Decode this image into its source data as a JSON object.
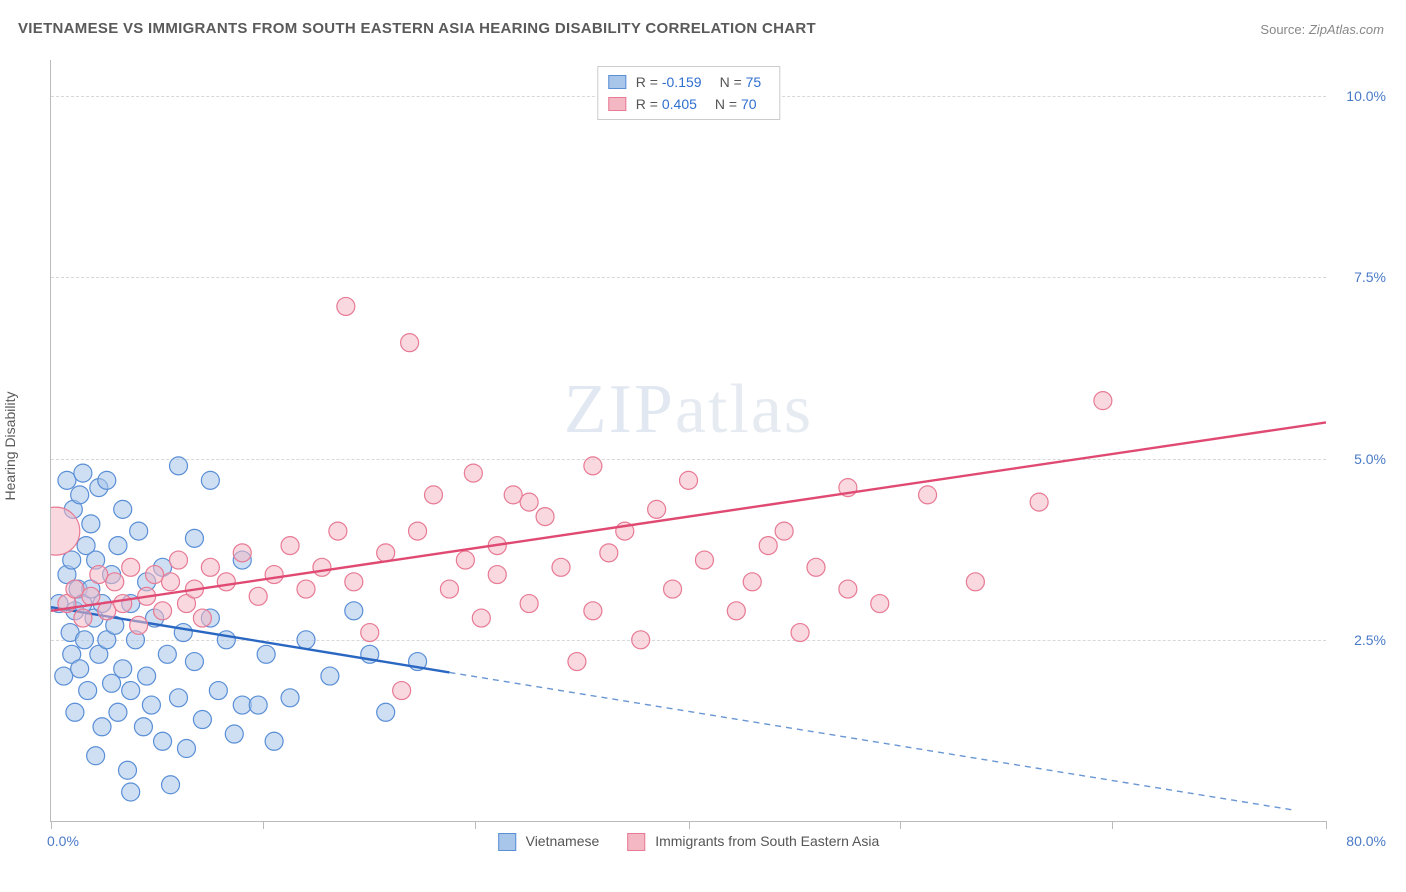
{
  "title": "VIETNAMESE VS IMMIGRANTS FROM SOUTH EASTERN ASIA HEARING DISABILITY CORRELATION CHART",
  "source_label": "Source:",
  "source_name": "ZipAtlas.com",
  "y_axis_label": "Hearing Disability",
  "watermark": {
    "bold": "ZIP",
    "light": "atlas"
  },
  "chart": {
    "type": "scatter",
    "background_color": "#ffffff",
    "grid_color": "#d8d8d8",
    "axis_color": "#bbbbbb",
    "tick_label_color": "#4a7ac7",
    "xlim": [
      0,
      80
    ],
    "ylim": [
      0,
      10.5
    ],
    "x_ticks": [
      0,
      13.3,
      26.6,
      40,
      53.3,
      66.6,
      80
    ],
    "x_tick_labels": {
      "first": "0.0%",
      "last": "80.0%"
    },
    "y_grid": [
      2.5,
      5.0,
      7.5,
      10.0
    ],
    "y_tick_labels": [
      "2.5%",
      "5.0%",
      "7.5%",
      "10.0%"
    ],
    "series": [
      {
        "name": "Vietnamese",
        "label": "Vietnamese",
        "fill_color": "#a8c5ea",
        "stroke_color": "#5a8fd6",
        "fill_opacity": 0.55,
        "marker_radius": 9,
        "R": "-0.159",
        "N": "75",
        "trend": {
          "solid": {
            "x1": 0,
            "y1": 2.95,
            "x2": 25,
            "y2": 2.05
          },
          "dashed": {
            "x1": 25,
            "y1": 2.05,
            "x2": 78,
            "y2": 0.15
          },
          "solid_color": "#2a67c2",
          "solid_width": 2.4,
          "dash_color": "#6a97d3",
          "dash_width": 1.4
        },
        "points": [
          [
            0.5,
            3.0
          ],
          [
            0.8,
            2.0
          ],
          [
            1.0,
            3.4
          ],
          [
            1.0,
            4.7
          ],
          [
            1.2,
            2.6
          ],
          [
            1.3,
            2.3
          ],
          [
            1.3,
            3.6
          ],
          [
            1.4,
            4.3
          ],
          [
            1.5,
            1.5
          ],
          [
            1.5,
            2.9
          ],
          [
            1.7,
            3.2
          ],
          [
            1.8,
            2.1
          ],
          [
            1.8,
            4.5
          ],
          [
            2.0,
            3.0
          ],
          [
            2.0,
            4.8
          ],
          [
            2.1,
            2.5
          ],
          [
            2.2,
            3.8
          ],
          [
            2.3,
            1.8
          ],
          [
            2.5,
            3.2
          ],
          [
            2.5,
            4.1
          ],
          [
            2.7,
            2.8
          ],
          [
            2.8,
            0.9
          ],
          [
            2.8,
            3.6
          ],
          [
            3.0,
            2.3
          ],
          [
            3.0,
            4.6
          ],
          [
            3.2,
            1.3
          ],
          [
            3.2,
            3.0
          ],
          [
            3.5,
            2.5
          ],
          [
            3.5,
            4.7
          ],
          [
            3.8,
            1.9
          ],
          [
            3.8,
            3.4
          ],
          [
            4.0,
            2.7
          ],
          [
            4.2,
            1.5
          ],
          [
            4.2,
            3.8
          ],
          [
            4.5,
            2.1
          ],
          [
            4.5,
            4.3
          ],
          [
            4.8,
            0.7
          ],
          [
            5.0,
            3.0
          ],
          [
            5.0,
            1.8
          ],
          [
            5.3,
            2.5
          ],
          [
            5.5,
            4.0
          ],
          [
            5.8,
            1.3
          ],
          [
            6.0,
            3.3
          ],
          [
            6.0,
            2.0
          ],
          [
            6.3,
            1.6
          ],
          [
            6.5,
            2.8
          ],
          [
            7.0,
            1.1
          ],
          [
            7.0,
            3.5
          ],
          [
            7.3,
            2.3
          ],
          [
            7.5,
            0.5
          ],
          [
            8.0,
            4.9
          ],
          [
            8.0,
            1.7
          ],
          [
            8.3,
            2.6
          ],
          [
            8.5,
            1.0
          ],
          [
            9.0,
            2.2
          ],
          [
            9.0,
            3.9
          ],
          [
            9.5,
            1.4
          ],
          [
            10.0,
            2.8
          ],
          [
            10.0,
            4.7
          ],
          [
            10.5,
            1.8
          ],
          [
            11.0,
            2.5
          ],
          [
            11.5,
            1.2
          ],
          [
            12.0,
            1.6
          ],
          [
            12.0,
            3.6
          ],
          [
            13.0,
            1.6
          ],
          [
            13.5,
            2.3
          ],
          [
            14.0,
            1.1
          ],
          [
            15.0,
            1.7
          ],
          [
            16.0,
            2.5
          ],
          [
            17.5,
            2.0
          ],
          [
            19.0,
            2.9
          ],
          [
            20.0,
            2.3
          ],
          [
            21.0,
            1.5
          ],
          [
            23.0,
            2.2
          ],
          [
            5.0,
            0.4
          ]
        ]
      },
      {
        "name": "Immigrants from South Eastern Asia",
        "label": "Immigrants from South Eastern Asia",
        "fill_color": "#f4b8c4",
        "stroke_color": "#e77a94",
        "fill_opacity": 0.55,
        "marker_radius": 9,
        "R": "0.405",
        "N": "70",
        "trend": {
          "solid": {
            "x1": 0,
            "y1": 2.9,
            "x2": 80,
            "y2": 5.5
          },
          "solid_color": "#e04a72",
          "solid_width": 2.4
        },
        "points": [
          [
            0.3,
            4.0,
            24
          ],
          [
            1.0,
            3.0
          ],
          [
            1.5,
            3.2
          ],
          [
            2.0,
            2.8
          ],
          [
            2.5,
            3.1
          ],
          [
            3.0,
            3.4
          ],
          [
            3.5,
            2.9
          ],
          [
            4.0,
            3.3
          ],
          [
            4.5,
            3.0
          ],
          [
            5.0,
            3.5
          ],
          [
            5.5,
            2.7
          ],
          [
            6.0,
            3.1
          ],
          [
            6.5,
            3.4
          ],
          [
            7.0,
            2.9
          ],
          [
            7.5,
            3.3
          ],
          [
            8.0,
            3.6
          ],
          [
            8.5,
            3.0
          ],
          [
            9.0,
            3.2
          ],
          [
            9.5,
            2.8
          ],
          [
            10.0,
            3.5
          ],
          [
            11.0,
            3.3
          ],
          [
            12.0,
            3.7
          ],
          [
            13.0,
            3.1
          ],
          [
            14.0,
            3.4
          ],
          [
            15.0,
            3.8
          ],
          [
            16.0,
            3.2
          ],
          [
            17.0,
            3.5
          ],
          [
            18.0,
            4.0
          ],
          [
            18.5,
            7.1
          ],
          [
            19.0,
            3.3
          ],
          [
            20.0,
            2.6
          ],
          [
            21.0,
            3.7
          ],
          [
            22.0,
            1.8
          ],
          [
            22.5,
            6.6
          ],
          [
            23.0,
            4.0
          ],
          [
            24.0,
            4.5
          ],
          [
            25.0,
            3.2
          ],
          [
            26.0,
            3.6
          ],
          [
            26.5,
            4.8
          ],
          [
            27.0,
            2.8
          ],
          [
            28.0,
            3.4
          ],
          [
            29.0,
            4.5
          ],
          [
            30.0,
            3.0
          ],
          [
            31.0,
            4.2
          ],
          [
            32.0,
            3.5
          ],
          [
            33.0,
            2.2
          ],
          [
            34.0,
            4.9
          ],
          [
            35.0,
            3.7
          ],
          [
            36.0,
            4.0
          ],
          [
            37.0,
            2.5
          ],
          [
            38.0,
            4.3
          ],
          [
            39.0,
            3.2
          ],
          [
            40.0,
            4.7
          ],
          [
            41.0,
            3.6
          ],
          [
            43.0,
            2.9
          ],
          [
            44.0,
            3.3
          ],
          [
            46.0,
            4.0
          ],
          [
            47.0,
            2.6
          ],
          [
            48.0,
            3.5
          ],
          [
            50.0,
            4.6
          ],
          [
            52.0,
            3.0
          ],
          [
            55.0,
            4.5
          ],
          [
            58.0,
            3.3
          ],
          [
            62.0,
            4.4
          ],
          [
            66.0,
            5.8
          ],
          [
            34.0,
            2.9
          ],
          [
            30.0,
            4.4
          ],
          [
            28.0,
            3.8
          ],
          [
            45.0,
            3.8
          ],
          [
            50.0,
            3.2
          ]
        ]
      }
    ],
    "legend_bottom": [
      {
        "label": "Vietnamese",
        "fill": "#a8c5ea",
        "stroke": "#5a8fd6"
      },
      {
        "label": "Immigrants from South Eastern Asia",
        "fill": "#f4b8c4",
        "stroke": "#e77a94"
      }
    ]
  }
}
